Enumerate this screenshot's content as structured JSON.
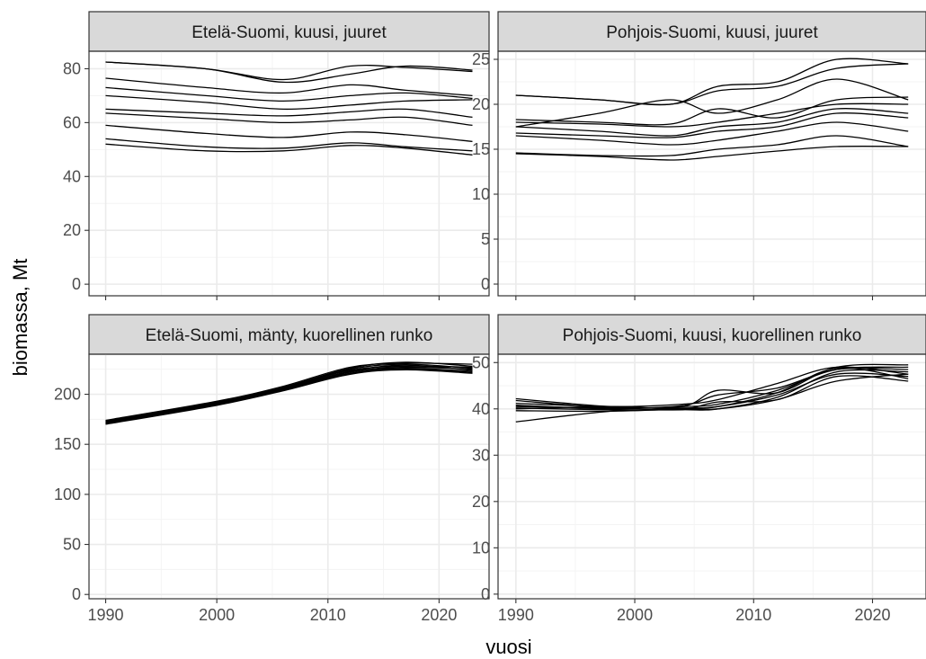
{
  "chart_data": [
    {
      "type": "line",
      "title": "Etelä-Suomi, kuusi, juuret",
      "xlabel": "vuosi",
      "ylabel": "biomassa, Mt",
      "xlim": [
        1988.5,
        2024.5
      ],
      "ylim": [
        -4.3,
        86.5
      ],
      "xticks": [
        1990,
        2000,
        2010,
        2020
      ],
      "yticks": [
        0,
        20,
        40,
        60,
        80
      ],
      "x": [
        1990,
        1999,
        2006,
        2012,
        2017,
        2023
      ],
      "series": [
        {
          "values": [
            82.5,
            80.0,
            76.0,
            81.0,
            80.5,
            79.0
          ]
        },
        {
          "values": [
            82.5,
            80.0,
            75.0,
            78.0,
            81.0,
            79.5
          ]
        },
        {
          "values": [
            76.5,
            73.0,
            71.0,
            74.0,
            72.0,
            70.0
          ]
        },
        {
          "values": [
            73.0,
            70.0,
            68.0,
            70.0,
            71.0,
            69.0
          ]
        },
        {
          "values": [
            70.0,
            67.5,
            65.0,
            66.5,
            68.0,
            68.5
          ]
        },
        {
          "values": [
            65.0,
            63.5,
            62.5,
            64.0,
            65.0,
            62.0
          ]
        },
        {
          "values": [
            63.5,
            61.5,
            60.0,
            61.0,
            62.0,
            59.0
          ]
        },
        {
          "values": [
            59.0,
            56.0,
            54.5,
            56.5,
            55.5,
            53.0
          ]
        },
        {
          "values": [
            54.0,
            51.0,
            50.5,
            52.5,
            51.0,
            49.5
          ]
        },
        {
          "values": [
            52.0,
            49.5,
            49.5,
            51.5,
            50.5,
            48.0
          ]
        }
      ]
    },
    {
      "type": "line",
      "title": "Pohjois-Suomi, kuusi, juuret",
      "xlabel": "vuosi",
      "ylabel": "biomassa, Mt",
      "xlim": [
        1988.5,
        2024.5
      ],
      "ylim": [
        -1.3,
        25.9
      ],
      "xticks": [
        1990,
        2000,
        2010,
        2020
      ],
      "yticks": [
        0,
        5,
        10,
        15,
        20,
        25
      ],
      "x": [
        1990,
        1997,
        2003,
        2007,
        2012,
        2017,
        2023
      ],
      "series": [
        {
          "values": [
            21.0,
            20.5,
            20.0,
            22.0,
            22.5,
            25.0,
            24.5
          ]
        },
        {
          "values": [
            21.0,
            20.5,
            20.0,
            21.5,
            22.0,
            24.0,
            24.5
          ]
        },
        {
          "values": [
            17.5,
            19.0,
            20.5,
            19.0,
            20.5,
            22.8,
            20.5
          ]
        },
        {
          "values": [
            18.3,
            18.0,
            17.8,
            19.5,
            18.5,
            20.5,
            20.8
          ]
        },
        {
          "values": [
            18.0,
            17.8,
            17.5,
            18.0,
            19.0,
            20.0,
            20.0
          ]
        },
        {
          "values": [
            17.5,
            17.0,
            16.5,
            17.5,
            18.0,
            19.5,
            19.0
          ]
        },
        {
          "values": [
            16.8,
            16.5,
            16.3,
            17.0,
            17.5,
            19.0,
            18.5
          ]
        },
        {
          "values": [
            16.5,
            16.0,
            15.5,
            16.0,
            17.0,
            18.0,
            17.0
          ]
        },
        {
          "values": [
            14.6,
            14.3,
            14.3,
            15.0,
            15.5,
            16.5,
            15.3
          ]
        },
        {
          "values": [
            14.5,
            14.2,
            13.8,
            14.2,
            14.8,
            15.3,
            15.3
          ]
        }
      ]
    },
    {
      "type": "line",
      "title": "Etelä-Suomi, mänty, kuorellinen runko",
      "xlabel": "vuosi",
      "ylabel": "biomassa, Mt",
      "xlim": [
        1988.5,
        2024.5
      ],
      "ylim": [
        -4.3,
        240.0
      ],
      "xticks": [
        1990,
        2000,
        2010,
        2020
      ],
      "yticks": [
        0,
        50,
        100,
        150,
        200
      ],
      "x": [
        1990,
        2000,
        2006,
        2012,
        2017,
        2023
      ],
      "series": [
        {
          "values": [
            174.0,
            193.0,
            208.0,
            227.0,
            231.0,
            230.0
          ]
        },
        {
          "values": [
            173.5,
            192.5,
            207.0,
            226.0,
            232.0,
            228.0
          ]
        },
        {
          "values": [
            173.0,
            192.0,
            206.5,
            225.0,
            230.0,
            226.0
          ]
        },
        {
          "values": [
            172.5,
            191.5,
            206.0,
            224.0,
            228.0,
            227.0
          ]
        },
        {
          "values": [
            172.0,
            191.0,
            205.5,
            223.0,
            229.0,
            224.0
          ]
        },
        {
          "values": [
            171.5,
            190.5,
            205.0,
            222.5,
            227.0,
            225.0
          ]
        },
        {
          "values": [
            171.0,
            190.0,
            204.5,
            222.0,
            226.0,
            223.0
          ]
        },
        {
          "values": [
            170.5,
            189.5,
            204.0,
            221.0,
            225.0,
            222.0
          ]
        },
        {
          "values": [
            170.0,
            189.0,
            203.5,
            220.0,
            224.5,
            221.0
          ]
        }
      ]
    },
    {
      "type": "line",
      "title": "Pohjois-Suomi, kuusi, kuorellinen runko",
      "xlabel": "vuosi",
      "ylabel": "biomassa, Mt",
      "xlim": [
        1988.5,
        2024.5
      ],
      "ylim": [
        -1.0,
        51.8
      ],
      "xticks": [
        1990,
        2000,
        2010,
        2020
      ],
      "yticks": [
        0,
        10,
        20,
        30,
        40,
        50
      ],
      "x": [
        1990,
        1998,
        2004,
        2007,
        2012,
        2017,
        2023
      ],
      "series": [
        {
          "values": [
            42.2,
            40.5,
            40.5,
            44.0,
            43.5,
            49.0,
            49.5
          ]
        },
        {
          "values": [
            41.8,
            40.3,
            40.7,
            43.0,
            44.5,
            48.5,
            48.5
          ]
        },
        {
          "values": [
            41.2,
            40.5,
            41.0,
            42.0,
            45.5,
            49.0,
            47.5
          ]
        },
        {
          "values": [
            40.8,
            40.0,
            40.5,
            41.0,
            44.0,
            48.5,
            49.0
          ]
        },
        {
          "values": [
            40.5,
            40.2,
            40.2,
            40.5,
            43.0,
            47.5,
            47.0
          ]
        },
        {
          "values": [
            40.2,
            39.8,
            39.8,
            40.0,
            42.5,
            48.0,
            48.0
          ]
        },
        {
          "values": [
            40.0,
            40.5,
            40.0,
            41.5,
            42.0,
            47.0,
            46.0
          ]
        },
        {
          "values": [
            39.6,
            39.5,
            40.0,
            40.5,
            43.5,
            48.8,
            46.5
          ]
        },
        {
          "values": [
            37.2,
            39.5,
            40.0,
            40.0,
            42.0,
            46.0,
            47.5
          ]
        }
      ]
    }
  ]
}
